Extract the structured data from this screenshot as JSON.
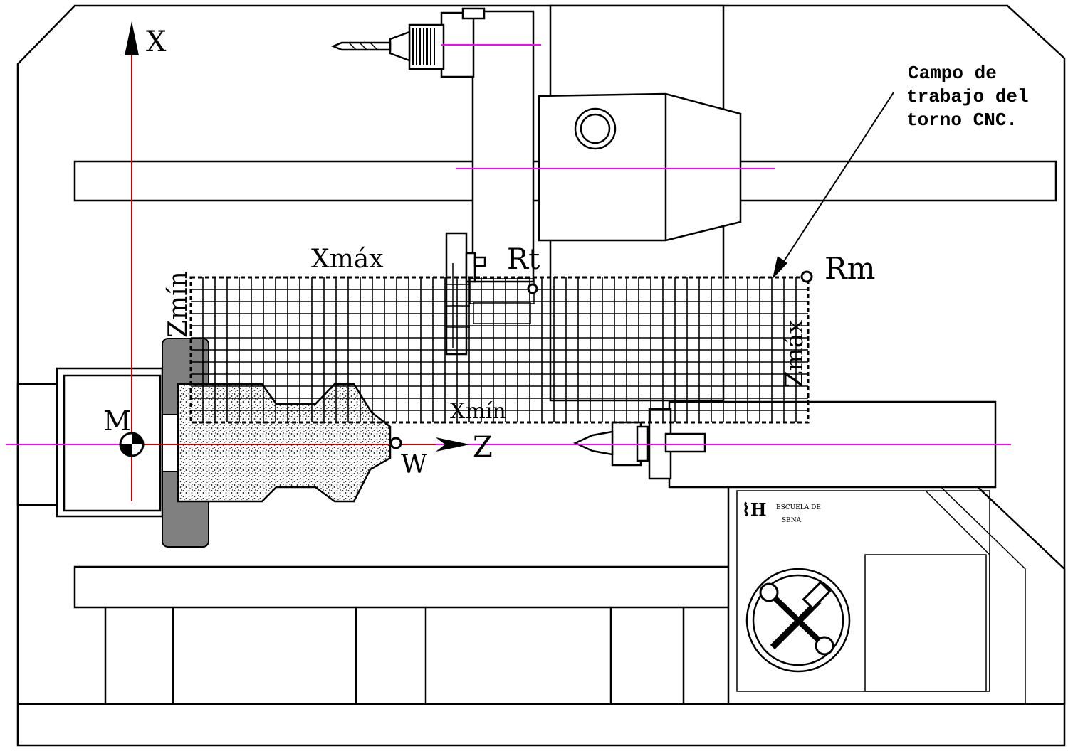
{
  "diagram": {
    "axes": {
      "x_label": "X",
      "z_label": "Z"
    },
    "reference_points": {
      "machine_zero": "M",
      "workpiece_zero": "W",
      "tool_reference": "Rt",
      "machine_reference": "Rm"
    },
    "limits": {
      "x_max": "Xmáx",
      "x_min": "Xmín",
      "z_min": "Zmín",
      "z_max": "Zmáx"
    },
    "annotation": {
      "line1": "Campo de",
      "line2": "trabajo del",
      "line3": "torno CNC."
    },
    "logo": {
      "line1": "ESCUELA DE",
      "line2": "SENA"
    },
    "colors": {
      "axis": "#cc0000",
      "centerline": "#ff00ff",
      "lines": "#000000",
      "chuck": "#808080"
    }
  }
}
